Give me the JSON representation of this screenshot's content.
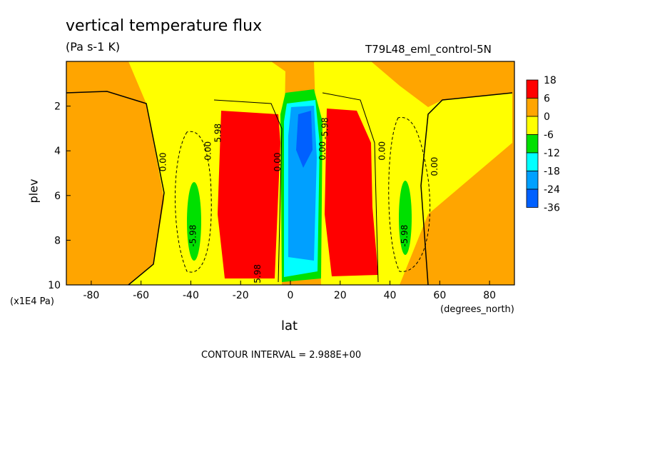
{
  "chart_data": {
    "type": "heatmap",
    "title": "vertical temperature flux",
    "units": "(Pa s-1 K)",
    "dataset_label": "T79L48_eml_control-5N",
    "xlabel": "lat",
    "xunits": "(degrees_north)",
    "ylabel": "plev",
    "yunits": "(x1E4 Pa)",
    "xlim": [
      -90,
      90
    ],
    "ylim": [
      10,
      0
    ],
    "x_ticks": [
      -80,
      -60,
      -40,
      -20,
      0,
      20,
      40,
      60,
      80
    ],
    "x_tick_labels": [
      "-80",
      "-60",
      "-40",
      "-20",
      "0",
      "20",
      "40",
      "60",
      "80"
    ],
    "y_ticks": [
      2,
      4,
      6,
      8,
      10
    ],
    "y_tick_labels": [
      "2",
      "4",
      "6",
      "8",
      "10"
    ],
    "contour_interval_text": "CONTOUR INTERVAL = 2.988E+00",
    "legend": {
      "placement": "right",
      "colors": [
        "#ff0000",
        "#ffa500",
        "#ffff00",
        "#00e000",
        "#00ffff",
        "#00a0ff",
        "#0060ff"
      ],
      "labels": [
        "18",
        "6",
        "0",
        "-6",
        "-12",
        "-18",
        "-24",
        "-36"
      ]
    },
    "contour_labels": [
      {
        "text": "0.00",
        "x": -50,
        "y": 4.5
      },
      {
        "text": "0.00",
        "x": -32,
        "y": 4.0
      },
      {
        "text": "5.98",
        "x": -28,
        "y": 3.2
      },
      {
        "text": "-5.98",
        "x": -38,
        "y": 7.8
      },
      {
        "text": "5.98",
        "x": -12,
        "y": 9.5
      },
      {
        "text": "0.00",
        "x": -4,
        "y": 4.5
      },
      {
        "text": "0.00",
        "x": 14,
        "y": 4.0
      },
      {
        "text": "-5.98",
        "x": 15,
        "y": 3.0
      },
      {
        "text": "0.00",
        "x": 38,
        "y": 4.0
      },
      {
        "text": "0.00",
        "x": 59,
        "y": 4.7
      },
      {
        "text": "-5.98",
        "x": 47,
        "y": 7.8
      }
    ]
  }
}
